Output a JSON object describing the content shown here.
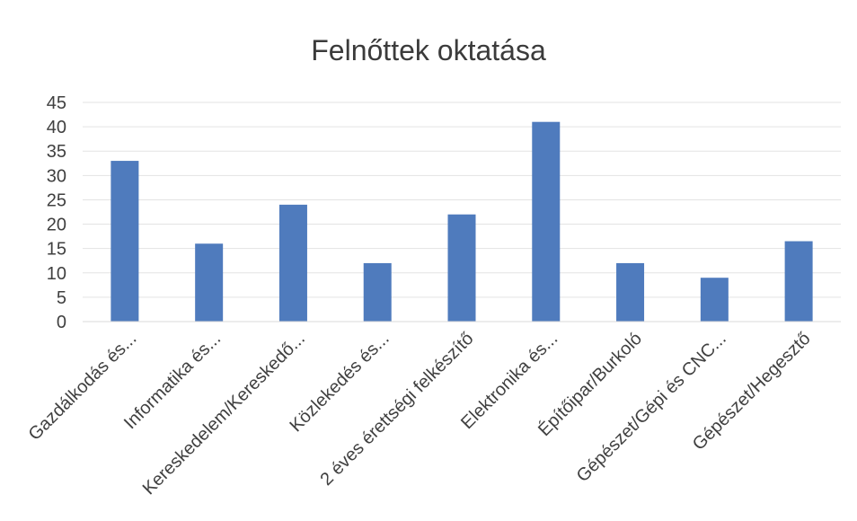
{
  "chart_data": {
    "type": "bar",
    "title": "Felnőttek oktatása",
    "categories": [
      "Gazdálkodás és...",
      "Informatika és...",
      "Kereskedelem/Kereskedő...",
      "Közlekedés és...",
      "2 éves érettségi felkészítő",
      "Elektronika és...",
      "Építőipar/Burkoló",
      "Gépészet/Gépi és CNC...",
      "Gépészet/Hegesztő"
    ],
    "values": [
      33,
      16,
      24,
      12,
      22,
      41,
      12,
      9,
      16.5
    ],
    "ylim": [
      0,
      45
    ],
    "yticks": [
      0,
      5,
      10,
      15,
      20,
      25,
      30,
      35,
      40,
      45
    ],
    "grid": true,
    "legend": "none",
    "bar_color": "#4f7bbd",
    "grid_color": "#e3e3e3"
  }
}
